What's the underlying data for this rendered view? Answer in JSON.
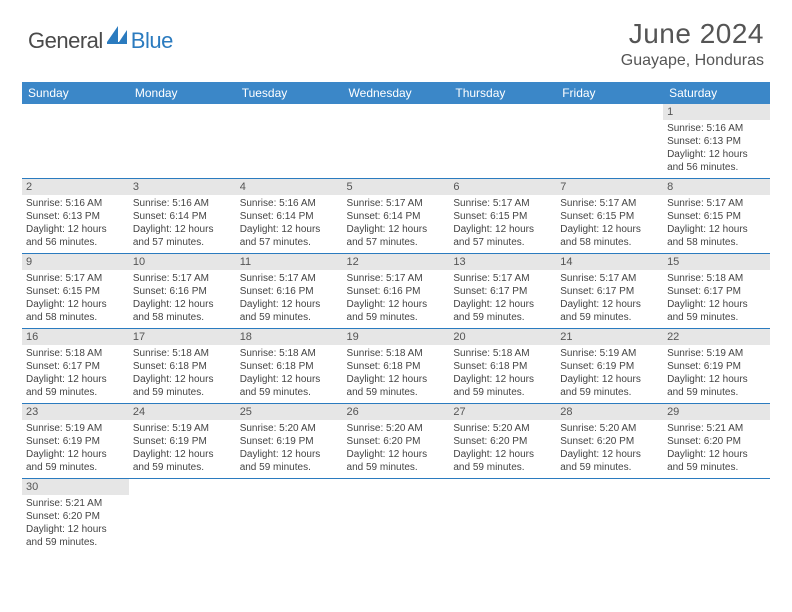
{
  "logo": {
    "part1": "General",
    "part2": "Blue"
  },
  "title": "June 2024",
  "location": "Guayape, Honduras",
  "colors": {
    "header_bg": "#3b87c8",
    "divider": "#2b7bbf",
    "daynum_bg": "#e6e6e6",
    "text": "#444444"
  },
  "weekdays": [
    "Sunday",
    "Monday",
    "Tuesday",
    "Wednesday",
    "Thursday",
    "Friday",
    "Saturday"
  ],
  "weeks": [
    [
      null,
      null,
      null,
      null,
      null,
      null,
      {
        "n": "1",
        "sr": "5:16 AM",
        "ss": "6:13 PM",
        "dl": "12 hours and 56 minutes."
      }
    ],
    [
      {
        "n": "2",
        "sr": "5:16 AM",
        "ss": "6:13 PM",
        "dl": "12 hours and 56 minutes."
      },
      {
        "n": "3",
        "sr": "5:16 AM",
        "ss": "6:14 PM",
        "dl": "12 hours and 57 minutes."
      },
      {
        "n": "4",
        "sr": "5:16 AM",
        "ss": "6:14 PM",
        "dl": "12 hours and 57 minutes."
      },
      {
        "n": "5",
        "sr": "5:17 AM",
        "ss": "6:14 PM",
        "dl": "12 hours and 57 minutes."
      },
      {
        "n": "6",
        "sr": "5:17 AM",
        "ss": "6:15 PM",
        "dl": "12 hours and 57 minutes."
      },
      {
        "n": "7",
        "sr": "5:17 AM",
        "ss": "6:15 PM",
        "dl": "12 hours and 58 minutes."
      },
      {
        "n": "8",
        "sr": "5:17 AM",
        "ss": "6:15 PM",
        "dl": "12 hours and 58 minutes."
      }
    ],
    [
      {
        "n": "9",
        "sr": "5:17 AM",
        "ss": "6:15 PM",
        "dl": "12 hours and 58 minutes."
      },
      {
        "n": "10",
        "sr": "5:17 AM",
        "ss": "6:16 PM",
        "dl": "12 hours and 58 minutes."
      },
      {
        "n": "11",
        "sr": "5:17 AM",
        "ss": "6:16 PM",
        "dl": "12 hours and 59 minutes."
      },
      {
        "n": "12",
        "sr": "5:17 AM",
        "ss": "6:16 PM",
        "dl": "12 hours and 59 minutes."
      },
      {
        "n": "13",
        "sr": "5:17 AM",
        "ss": "6:17 PM",
        "dl": "12 hours and 59 minutes."
      },
      {
        "n": "14",
        "sr": "5:17 AM",
        "ss": "6:17 PM",
        "dl": "12 hours and 59 minutes."
      },
      {
        "n": "15",
        "sr": "5:18 AM",
        "ss": "6:17 PM",
        "dl": "12 hours and 59 minutes."
      }
    ],
    [
      {
        "n": "16",
        "sr": "5:18 AM",
        "ss": "6:17 PM",
        "dl": "12 hours and 59 minutes."
      },
      {
        "n": "17",
        "sr": "5:18 AM",
        "ss": "6:18 PM",
        "dl": "12 hours and 59 minutes."
      },
      {
        "n": "18",
        "sr": "5:18 AM",
        "ss": "6:18 PM",
        "dl": "12 hours and 59 minutes."
      },
      {
        "n": "19",
        "sr": "5:18 AM",
        "ss": "6:18 PM",
        "dl": "12 hours and 59 minutes."
      },
      {
        "n": "20",
        "sr": "5:18 AM",
        "ss": "6:18 PM",
        "dl": "12 hours and 59 minutes."
      },
      {
        "n": "21",
        "sr": "5:19 AM",
        "ss": "6:19 PM",
        "dl": "12 hours and 59 minutes."
      },
      {
        "n": "22",
        "sr": "5:19 AM",
        "ss": "6:19 PM",
        "dl": "12 hours and 59 minutes."
      }
    ],
    [
      {
        "n": "23",
        "sr": "5:19 AM",
        "ss": "6:19 PM",
        "dl": "12 hours and 59 minutes."
      },
      {
        "n": "24",
        "sr": "5:19 AM",
        "ss": "6:19 PM",
        "dl": "12 hours and 59 minutes."
      },
      {
        "n": "25",
        "sr": "5:20 AM",
        "ss": "6:19 PM",
        "dl": "12 hours and 59 minutes."
      },
      {
        "n": "26",
        "sr": "5:20 AM",
        "ss": "6:20 PM",
        "dl": "12 hours and 59 minutes."
      },
      {
        "n": "27",
        "sr": "5:20 AM",
        "ss": "6:20 PM",
        "dl": "12 hours and 59 minutes."
      },
      {
        "n": "28",
        "sr": "5:20 AM",
        "ss": "6:20 PM",
        "dl": "12 hours and 59 minutes."
      },
      {
        "n": "29",
        "sr": "5:21 AM",
        "ss": "6:20 PM",
        "dl": "12 hours and 59 minutes."
      }
    ],
    [
      {
        "n": "30",
        "sr": "5:21 AM",
        "ss": "6:20 PM",
        "dl": "12 hours and 59 minutes."
      },
      null,
      null,
      null,
      null,
      null,
      null
    ]
  ],
  "labels": {
    "sunrise": "Sunrise: ",
    "sunset": "Sunset: ",
    "daylight": "Daylight: "
  }
}
